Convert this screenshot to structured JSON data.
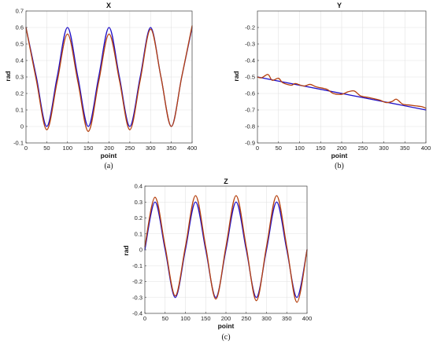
{
  "chart_data": [
    {
      "type": "line",
      "title": "X",
      "xlabel": "point",
      "ylabel": "rad",
      "caption": "(a)",
      "xlim": [
        0,
        400
      ],
      "ylim": [
        -0.1,
        0.7
      ],
      "xticks": [
        0,
        50,
        100,
        150,
        200,
        250,
        300,
        350,
        400
      ],
      "yticks": [
        -0.1,
        0,
        0.1,
        0.2,
        0.3,
        0.4,
        0.5,
        0.6,
        0.7
      ],
      "grid": true,
      "series": [
        {
          "color": "#1f10c8",
          "x": [
            0,
            25,
            50,
            75,
            100,
            125,
            150,
            175,
            200,
            225,
            250,
            275,
            300,
            325,
            350,
            375,
            400
          ],
          "values": [
            0.6,
            0.3,
            0.0,
            0.3,
            0.6,
            0.3,
            0.0,
            0.3,
            0.6,
            0.3,
            0.0,
            0.3,
            0.6,
            0.3,
            0.0,
            0.3,
            0.6
          ]
        },
        {
          "color": "#b5400e",
          "x": [
            0,
            25,
            50,
            75,
            100,
            125,
            150,
            175,
            200,
            225,
            250,
            275,
            300,
            325,
            350,
            375,
            400
          ],
          "values": [
            0.6,
            0.28,
            -0.02,
            0.27,
            0.56,
            0.27,
            -0.03,
            0.27,
            0.56,
            0.28,
            -0.02,
            0.28,
            0.59,
            0.3,
            0.0,
            0.3,
            0.61
          ]
        }
      ]
    },
    {
      "type": "line",
      "title": "Y",
      "xlabel": "point",
      "ylabel": "rad",
      "caption": "(b)",
      "xlim": [
        0,
        400
      ],
      "ylim": [
        -0.9,
        -0.1
      ],
      "xticks": [
        0,
        50,
        100,
        150,
        200,
        250,
        300,
        350,
        400
      ],
      "yticks": [
        -0.9,
        -0.8,
        -0.7,
        -0.6,
        -0.5,
        -0.4,
        -0.3,
        -0.2
      ],
      "grid": true,
      "series": [
        {
          "color": "#1f10c8",
          "x": [
            0,
            400
          ],
          "values": [
            -0.5,
            -0.7
          ]
        },
        {
          "color": "#b5400e",
          "x": [
            0,
            10,
            25,
            35,
            50,
            60,
            80,
            90,
            110,
            125,
            140,
            165,
            180,
            200,
            215,
            230,
            245,
            265,
            290,
            305,
            320,
            330,
            345,
            360,
            375,
            390,
            400
          ],
          "values": [
            -0.5,
            -0.505,
            -0.485,
            -0.52,
            -0.508,
            -0.535,
            -0.55,
            -0.54,
            -0.555,
            -0.545,
            -0.56,
            -0.575,
            -0.6,
            -0.605,
            -0.59,
            -0.585,
            -0.615,
            -0.625,
            -0.64,
            -0.655,
            -0.648,
            -0.635,
            -0.665,
            -0.67,
            -0.675,
            -0.68,
            -0.69
          ]
        }
      ]
    },
    {
      "type": "line",
      "title": "Z",
      "xlabel": "point",
      "ylabel": "rad",
      "caption": "(c)",
      "xlim": [
        0,
        400
      ],
      "ylim": [
        -0.4,
        0.4
      ],
      "xticks": [
        0,
        50,
        100,
        150,
        200,
        250,
        300,
        350,
        400
      ],
      "yticks": [
        -0.4,
        -0.3,
        -0.2,
        -0.1,
        0,
        0.1,
        0.2,
        0.3,
        0.4
      ],
      "grid": true,
      "series": [
        {
          "color": "#1f10c8",
          "x": [
            0,
            25,
            50,
            75,
            100,
            125,
            150,
            175,
            200,
            225,
            250,
            275,
            300,
            325,
            350,
            375,
            400
          ],
          "values": [
            0.0,
            0.3,
            0.0,
            -0.3,
            0.0,
            0.3,
            0.0,
            -0.3,
            0.0,
            0.3,
            0.0,
            -0.3,
            0.0,
            0.3,
            0.0,
            -0.3,
            0.0
          ]
        },
        {
          "color": "#b5400e",
          "x": [
            0,
            25,
            50,
            75,
            100,
            125,
            150,
            175,
            200,
            225,
            250,
            275,
            300,
            325,
            350,
            375,
            400
          ],
          "values": [
            0.02,
            0.33,
            0.02,
            -0.29,
            0.02,
            0.34,
            0.02,
            -0.31,
            0.02,
            0.34,
            0.02,
            -0.32,
            0.02,
            0.34,
            0.02,
            -0.33,
            0.0
          ]
        }
      ]
    }
  ]
}
